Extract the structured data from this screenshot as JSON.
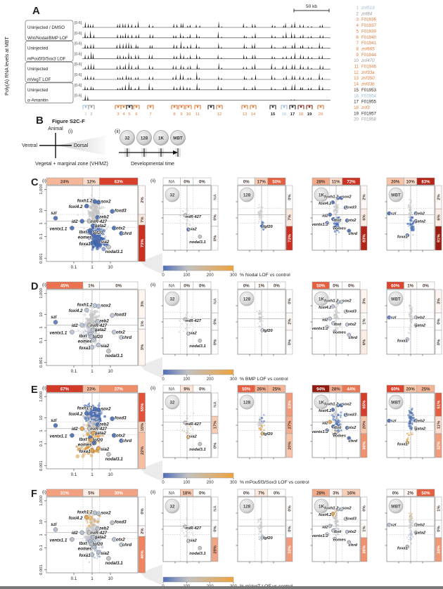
{
  "panel_a": {
    "letter": "A",
    "y_axis_label": "Poly(A) RNA levels at MBT",
    "scale_bar_label": "50 kb",
    "track_range_label": "[0-6]",
    "track_groups": [
      [
        "Uninjected / DMSO",
        "Wnt/Nodal/BMP LOF"
      ],
      [
        "Uninjected",
        "mPou5f3/Sox3 LOF"
      ],
      [
        "Uninjected",
        "mVegT LOF"
      ],
      [
        "Uninjected",
        "α-Amanitin"
      ]
    ],
    "gene_list": [
      {
        "num": "1",
        "name": "znf519",
        "color": "#9bbbd8",
        "italic": true
      },
      {
        "num": "2",
        "name": "znf84",
        "color": "#9a9a9a",
        "italic": true
      },
      {
        "num": "3",
        "name": "F01936",
        "color": "#e07b3a",
        "italic": false
      },
      {
        "num": "4",
        "name": "F01937",
        "color": "#e07b3a",
        "italic": false
      },
      {
        "num": "5",
        "name": "F01939",
        "color": "#e07b3a",
        "italic": false
      },
      {
        "num": "6",
        "name": "F01940",
        "color": "#e07b3a",
        "italic": false
      },
      {
        "num": "7",
        "name": "F01941",
        "color": "#e07b3a",
        "italic": false
      },
      {
        "num": "8",
        "name": "znf665",
        "color": "#e07b3a",
        "italic": true
      },
      {
        "num": "9",
        "name": "F01944",
        "color": "#e07b3a",
        "italic": false
      },
      {
        "num": "10",
        "name": "znf470",
        "color": "#9a9a9a",
        "italic": true
      },
      {
        "num": "11",
        "name": "F01946",
        "color": "#e07b3a",
        "italic": false
      },
      {
        "num": "12",
        "name": "znf33a",
        "color": "#e07b3a",
        "italic": true
      },
      {
        "num": "13",
        "name": "znf350",
        "color": "#e07b3a",
        "italic": true
      },
      {
        "num": "14",
        "name": "znf33b",
        "color": "#e07b3a",
        "italic": true
      },
      {
        "num": "15",
        "name": "F01953",
        "color": "#3a2a20",
        "italic": false
      },
      {
        "num": "16",
        "name": "F01954",
        "color": "#9bbbd8",
        "italic": false
      },
      {
        "num": "17",
        "name": "F01955",
        "color": "#222222",
        "italic": false
      },
      {
        "num": "18",
        "name": "znf3",
        "color": "#e07b3a",
        "italic": true
      },
      {
        "num": "19",
        "name": "F01957",
        "color": "#222222",
        "italic": false
      },
      {
        "num": "20",
        "name": "F01958",
        "color": "#9a9a9a",
        "italic": false
      }
    ]
  },
  "panel_b": {
    "letter": "B",
    "title": "Figure S2C-F",
    "sub_i": "(i)",
    "sub_ii": "(ii)",
    "compass": {
      "top": "Animal",
      "left": "Ventral",
      "right": "Dorsal",
      "caption": "Vegetal + marginal zone (VH/MZ)"
    },
    "stages": [
      "32",
      "128",
      "1K",
      "MBT"
    ],
    "timeline_caption": "Developmental time"
  },
  "scatter_axes": {
    "x_ticks": [
      "0.1",
      "1",
      "10"
    ],
    "y_ticks": [
      "1,000",
      "10",
      "1",
      "0.1",
      "0.001"
    ]
  },
  "colorbar": {
    "ticks": [
      "0",
      "100",
      "200",
      "300"
    ]
  },
  "colors": {
    "blue": "#4a6fb5",
    "orange": "#e2a14c",
    "gray_point": "#c6c6c6"
  },
  "rows": [
    {
      "letter": "C",
      "sub_i": "(i)",
      "sub_ii": "(ii)",
      "colorbar_label": "% Nodal LOF vs control",
      "main": {
        "top_pcts": [
          "24%",
          "12%",
          "63%"
        ],
        "right_pcts": [
          "2%",
          "7%",
          "73%"
        ]
      },
      "small": [
        {
          "stage": "32",
          "top_pcts": [
            "NA",
            "0%",
            "0%"
          ],
          "right_pcts": [
            "NA",
            "0%",
            "0%"
          ]
        },
        {
          "stage": "128",
          "top_pcts": [
            "0%",
            "17%",
            "50%"
          ],
          "right_pcts": [
            "0%",
            "7%",
            "73%"
          ]
        },
        {
          "stage": "1K",
          "top_pcts": [
            "28%",
            "11%",
            "72%"
          ],
          "right_pcts": [
            "2%",
            "6%",
            "83%"
          ]
        },
        {
          "stage": "MBT",
          "top_pcts": [
            "20%",
            "10%",
            "83%"
          ],
          "right_pcts": [
            "2%",
            "6%",
            "91%"
          ]
        }
      ]
    },
    {
      "letter": "D",
      "sub_i": "(i)",
      "sub_ii": "(ii)",
      "colorbar_label": "% BMP LOF vs control",
      "main": {
        "top_pcts": [
          "45%",
          "1%",
          "0%"
        ],
        "right_pcts": [
          "3%",
          "1%",
          "3%"
        ]
      },
      "small": [
        {
          "stage": "32",
          "top_pcts": [
            "NA",
            "0%",
            "0%"
          ],
          "right_pcts": [
            "NA",
            "0%",
            "0%"
          ]
        },
        {
          "stage": "128",
          "top_pcts": [
            "0%",
            "1%",
            "0%"
          ],
          "right_pcts": [
            "0%",
            "2%",
            "0%"
          ]
        },
        {
          "stage": "1K",
          "top_pcts": [
            "50%",
            "0%",
            "0%"
          ],
          "right_pcts": [
            "3%",
            "1%",
            "6%"
          ]
        },
        {
          "stage": "MBT",
          "top_pcts": [
            "60%",
            "1%",
            "0%"
          ],
          "right_pcts": [
            "3%",
            "0%",
            "0%"
          ]
        }
      ]
    },
    {
      "letter": "E",
      "sub_i": "(i)",
      "sub_ii": "(ii)",
      "colorbar_label": "% mPou5f3/Sox3 LOF vs control",
      "main": {
        "top_pcts": [
          "67%",
          "23%",
          "37%"
        ],
        "right_pcts": [
          "55%",
          "15%",
          "22%"
        ]
      },
      "small": [
        {
          "stage": "32",
          "top_pcts": [
            "NA",
            "9%",
            "0%"
          ],
          "right_pcts": [
            "NA",
            "17%",
            "0%"
          ]
        },
        {
          "stage": "128",
          "top_pcts": [
            "50%",
            "26%",
            "25%"
          ],
          "right_pcts": [
            "33%",
            "27%",
            "20%"
          ]
        },
        {
          "stage": "1K",
          "top_pcts": [
            "94%",
            "28%",
            "44%"
          ],
          "right_pcts": [
            "65%",
            "20%",
            "36%"
          ]
        },
        {
          "stage": "MBT",
          "top_pcts": [
            "60%",
            "20%",
            "25%"
          ],
          "right_pcts": [
            "51%",
            "11%",
            "32%"
          ]
        }
      ]
    },
    {
      "letter": "F",
      "sub_i": "(i)",
      "sub_ii": "(ii)",
      "colorbar_label": "% mVegT LOF vs control",
      "main": {
        "top_pcts": [
          "31%",
          "5%",
          "30%"
        ],
        "right_pcts": [
          "0%",
          "2%",
          "40%"
        ]
      },
      "small": [
        {
          "stage": "32",
          "top_pcts": [
            "NA",
            "18%",
            "0%"
          ],
          "right_pcts": [
            "NA",
            "0%",
            "29%"
          ]
        },
        {
          "stage": "128",
          "top_pcts": [
            "0%",
            "7%",
            "0%"
          ],
          "right_pcts": [
            "0%",
            "0%",
            "33%"
          ]
        },
        {
          "stage": "1K",
          "top_pcts": [
            "28%",
            "3%",
            "16%"
          ],
          "right_pcts": [
            "0%",
            "1%",
            "36%"
          ]
        },
        {
          "stage": "MBT",
          "top_pcts": [
            "0%",
            "2%",
            "50%"
          ],
          "right_pcts": [
            "1%",
            "0%",
            "34%"
          ]
        }
      ]
    }
  ],
  "gene_labels": {
    "main": [
      {
        "n": "foxh1.2",
        "lx": 0.42,
        "ly": 0.2,
        "mx": 0.53,
        "my": 0.21
      },
      {
        "n": "foxi4.2",
        "lx": 0.32,
        "ly": 0.28,
        "mx": 0.44,
        "my": 0.27
      },
      {
        "n": "sox2",
        "lx": 0.65,
        "ly": 0.21,
        "mx": 0.57,
        "my": 0.22
      },
      {
        "n": "szl",
        "lx": 0.08,
        "ly": 0.36,
        "mx": 0.1,
        "my": 0.43
      },
      {
        "n": "foxd3",
        "lx": 0.81,
        "ly": 0.33,
        "mx": 0.72,
        "my": 0.34
      },
      {
        "n": "zeb2",
        "lx": 0.63,
        "ly": 0.41,
        "mx": 0.56,
        "my": 0.42
      },
      {
        "n": "id2",
        "lx": 0.31,
        "ly": 0.47,
        "mx": 0.39,
        "my": 0.47
      },
      {
        "n": "miR-427",
        "lx": 0.57,
        "ly": 0.47,
        "mx": 0.47,
        "my": 0.47
      },
      {
        "n": "ventx1.1",
        "lx": 0.13,
        "ly": 0.57,
        "mx": 0.28,
        "my": 0.56
      },
      {
        "n": "gata2",
        "lx": 0.59,
        "ly": 0.53,
        "mx": 0.51,
        "my": 0.53
      },
      {
        "n": "tbxt",
        "lx": 0.4,
        "ly": 0.61,
        "mx": 0.48,
        "my": 0.59
      },
      {
        "n": "fgf20",
        "lx": 0.56,
        "ly": 0.62,
        "mx": 0.49,
        "my": 0.62
      },
      {
        "n": "otx2",
        "lx": 0.81,
        "ly": 0.56,
        "mx": 0.74,
        "my": 0.56
      },
      {
        "n": "chrd",
        "lx": 0.88,
        "ly": 0.63,
        "mx": 0.82,
        "my": 0.63
      },
      {
        "n": "eomes",
        "lx": 0.42,
        "ly": 0.68,
        "mx": 0.52,
        "my": 0.66
      },
      {
        "n": "sia2",
        "lx": 0.64,
        "ly": 0.74,
        "mx": 0.57,
        "my": 0.73
      },
      {
        "n": "foxa1",
        "lx": 0.42,
        "ly": 0.77,
        "mx": 0.5,
        "my": 0.76
      },
      {
        "n": "nodal3.1",
        "lx": 0.74,
        "ly": 0.87,
        "mx": 0.68,
        "my": 0.81
      }
    ],
    "s32": [
      {
        "n": "miR-427",
        "lx": 0.63,
        "ly": 0.48,
        "mx": 0.46,
        "my": 0.46
      },
      {
        "n": "sia2",
        "lx": 0.62,
        "ly": 0.67,
        "mx": 0.53,
        "my": 0.68
      },
      {
        "n": "nodal3.1",
        "lx": 0.72,
        "ly": 0.87,
        "mx": 0.77,
        "my": 0.79
      }
    ],
    "s128": [
      {
        "n": "fgf20",
        "lx": 0.63,
        "ly": 0.63,
        "mx": 0.52,
        "my": 0.63
      }
    ],
    "s1K": [
      {
        "n": "foxh1.2",
        "lx": 0.4,
        "ly": 0.17,
        "mx": 0.54,
        "my": 0.19
      },
      {
        "n": "sox2",
        "lx": 0.72,
        "ly": 0.17,
        "mx": 0.61,
        "my": 0.19
      },
      {
        "n": "foxi4.2",
        "lx": 0.27,
        "ly": 0.27,
        "mx": 0.43,
        "my": 0.26
      },
      {
        "n": "foxd3",
        "lx": 0.81,
        "ly": 0.33,
        "mx": 0.7,
        "my": 0.34
      },
      {
        "n": "id2",
        "lx": 0.27,
        "ly": 0.46,
        "mx": 0.37,
        "my": 0.45
      },
      {
        "n": "tbxt",
        "lx": 0.53,
        "ly": 0.53,
        "mx": 0.44,
        "my": 0.52
      },
      {
        "n": "otx2",
        "lx": 0.83,
        "ly": 0.53,
        "mx": 0.73,
        "my": 0.54
      },
      {
        "n": "ventx1.1",
        "lx": 0.16,
        "ly": 0.6,
        "mx": 0.31,
        "my": 0.58
      },
      {
        "n": "eomes",
        "lx": 0.57,
        "ly": 0.66,
        "mx": 0.47,
        "my": 0.65
      },
      {
        "n": "chrd",
        "lx": 0.85,
        "ly": 0.74,
        "mx": 0.77,
        "my": 0.7
      }
    ],
    "sMBT": [
      {
        "n": "szl",
        "lx": 0.14,
        "ly": 0.43,
        "mx": 0.05,
        "my": 0.43
      },
      {
        "n": "zeb2",
        "lx": 0.7,
        "ly": 0.43,
        "mx": 0.61,
        "my": 0.43
      },
      {
        "n": "gata2",
        "lx": 0.7,
        "ly": 0.55,
        "mx": 0.61,
        "my": 0.55
      },
      {
        "n": "foxa1",
        "lx": 0.33,
        "ly": 0.79,
        "mx": 0.43,
        "my": 0.77
      }
    ]
  }
}
